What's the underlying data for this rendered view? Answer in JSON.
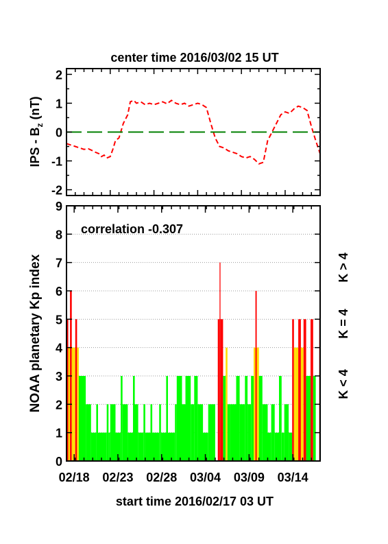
{
  "chart_data": [
    {
      "type": "line",
      "title": "center time 2016/03/02 15 UT",
      "ylabel_main": "IPS - B",
      "ylabel_sub": "z",
      "ylabel_unit": " (nT)",
      "ylim": [
        -2.2,
        2.2
      ],
      "yticks": [
        2,
        1,
        0,
        -1,
        -2
      ],
      "xlim_days": [
        0,
        29
      ],
      "series": [
        {
          "color": "#ff0000",
          "style": "dashed",
          "x": [
            0,
            0.5,
            1,
            1.5,
            2,
            2.5,
            3,
            3.3,
            3.7,
            4,
            4.3,
            4.6,
            5,
            5.3,
            5.6,
            6,
            6.5,
            7,
            7.3,
            7.7,
            8,
            8.5,
            9,
            9.5,
            10,
            10.5,
            11,
            11.5,
            12,
            12.5,
            13,
            13.5,
            14,
            14.5,
            15,
            15.5,
            16,
            16.5,
            17,
            17.5,
            18,
            18.5,
            19,
            19.5,
            20,
            20.5,
            21,
            21.5,
            22,
            22.5,
            23,
            23.5,
            24,
            24.5,
            25,
            25.5,
            26,
            26.5,
            27,
            27.5,
            28,
            28.5,
            29
          ],
          "y": [
            -0.4,
            -0.45,
            -0.5,
            -0.55,
            -0.6,
            -0.58,
            -0.65,
            -0.7,
            -0.75,
            -0.85,
            -0.8,
            -0.9,
            -0.85,
            -0.6,
            -0.3,
            -0.2,
            0.3,
            0.6,
            1.05,
            1.1,
            1.0,
            1.05,
            0.95,
            1.0,
            0.95,
            1.0,
            1.05,
            0.98,
            1.1,
            1.0,
            0.95,
            1.0,
            0.9,
            0.95,
            1.0,
            0.95,
            0.85,
            0.3,
            -0.2,
            -0.5,
            -0.55,
            -0.65,
            -0.7,
            -0.75,
            -0.85,
            -0.9,
            -0.85,
            -0.95,
            -1.1,
            -1.05,
            -0.3,
            0.0,
            0.3,
            0.6,
            0.7,
            0.65,
            0.8,
            0.9,
            0.85,
            0.75,
            0.2,
            -0.3,
            -0.75
          ]
        },
        {
          "color": "#008000",
          "style": "long-dashed",
          "x": [
            0,
            29
          ],
          "y": [
            0,
            0
          ]
        }
      ]
    },
    {
      "type": "bar",
      "ylabel": "NOAA planetary Kp index",
      "annotation": "correlation -0.307",
      "ylim": [
        0,
        9
      ],
      "yticks": [
        0,
        1,
        2,
        3,
        4,
        5,
        6,
        7,
        8,
        9
      ],
      "xlabel": "start time 2016/02/17 03 UT",
      "x_ticklabels": [
        "02/18",
        "02/23",
        "02/28",
        "03/04",
        "03/09",
        "03/14"
      ],
      "x_tick_days": [
        0.875,
        5.875,
        10.875,
        15.875,
        20.875,
        25.875
      ],
      "bin_days": 0.125,
      "legend": [
        {
          "label": "K < 4",
          "color": "#00ff00"
        },
        {
          "label": "K = 4",
          "color": "#ffdd00"
        },
        {
          "label": "K > 4",
          "color": "#ff0000"
        }
      ],
      "legend_placement": "right",
      "kp_segments": [
        [
          0,
          0.2,
          5
        ],
        [
          0.2,
          0.4,
          4
        ],
        [
          0.4,
          0.6,
          6
        ],
        [
          0.6,
          0.8,
          4
        ],
        [
          0.8,
          1.0,
          4
        ],
        [
          1.0,
          1.2,
          5
        ],
        [
          1.2,
          1.4,
          4
        ],
        [
          1.4,
          2.2,
          3
        ],
        [
          2.2,
          2.8,
          2
        ],
        [
          2.8,
          3.4,
          1
        ],
        [
          3.4,
          3.6,
          2
        ],
        [
          3.6,
          4.6,
          1
        ],
        [
          4.6,
          4.8,
          2
        ],
        [
          4.8,
          5.0,
          1
        ],
        [
          5.0,
          5.6,
          2
        ],
        [
          5.6,
          6.2,
          1
        ],
        [
          6.2,
          6.4,
          3
        ],
        [
          6.4,
          7.0,
          2
        ],
        [
          7.0,
          7.6,
          1
        ],
        [
          7.6,
          7.8,
          3
        ],
        [
          7.8,
          8.2,
          2
        ],
        [
          8.2,
          8.8,
          1
        ],
        [
          8.8,
          9.0,
          2
        ],
        [
          9.0,
          9.6,
          1
        ],
        [
          9.6,
          9.8,
          2
        ],
        [
          9.8,
          10.6,
          1
        ],
        [
          10.6,
          10.8,
          2
        ],
        [
          10.8,
          11.4,
          1
        ],
        [
          11.4,
          11.6,
          3
        ],
        [
          11.6,
          12.4,
          1
        ],
        [
          12.4,
          12.6,
          2
        ],
        [
          12.6,
          13.2,
          3
        ],
        [
          13.2,
          13.6,
          2
        ],
        [
          13.6,
          14.2,
          3
        ],
        [
          14.2,
          14.6,
          2
        ],
        [
          14.6,
          15.0,
          3
        ],
        [
          15.0,
          15.6,
          2
        ],
        [
          15.6,
          16.2,
          1
        ],
        [
          16.2,
          17.0,
          2
        ],
        [
          17.0,
          17.3,
          0
        ],
        [
          17.3,
          17.5,
          5
        ],
        [
          17.5,
          17.6,
          7
        ],
        [
          17.6,
          17.9,
          5
        ],
        [
          17.9,
          18.2,
          3
        ],
        [
          18.2,
          18.4,
          4
        ],
        [
          18.4,
          18.7,
          2
        ],
        [
          18.7,
          19.4,
          2
        ],
        [
          19.4,
          19.8,
          3
        ],
        [
          19.8,
          20.4,
          2
        ],
        [
          20.4,
          20.7,
          3
        ],
        [
          20.7,
          21.1,
          2
        ],
        [
          21.1,
          21.4,
          3
        ],
        [
          21.4,
          21.6,
          4
        ],
        [
          21.6,
          21.75,
          6
        ],
        [
          21.75,
          22.0,
          4
        ],
        [
          22.0,
          22.4,
          3
        ],
        [
          22.4,
          23.0,
          2
        ],
        [
          23.0,
          23.4,
          1
        ],
        [
          23.4,
          23.8,
          2
        ],
        [
          23.8,
          24.3,
          1
        ],
        [
          24.3,
          24.6,
          3
        ],
        [
          24.6,
          24.9,
          1
        ],
        [
          24.9,
          25.4,
          2
        ],
        [
          25.4,
          25.8,
          1
        ],
        [
          25.8,
          26.0,
          5
        ],
        [
          26.0,
          26.2,
          4
        ],
        [
          26.2,
          26.5,
          4
        ],
        [
          26.5,
          26.8,
          5
        ],
        [
          26.8,
          27.1,
          4
        ],
        [
          27.1,
          27.4,
          5
        ],
        [
          27.4,
          27.9,
          3
        ],
        [
          27.9,
          28.2,
          5
        ],
        [
          28.2,
          28.5,
          3
        ],
        [
          28.5,
          28.9,
          0
        ],
        [
          28.9,
          29.0,
          5
        ]
      ]
    }
  ]
}
